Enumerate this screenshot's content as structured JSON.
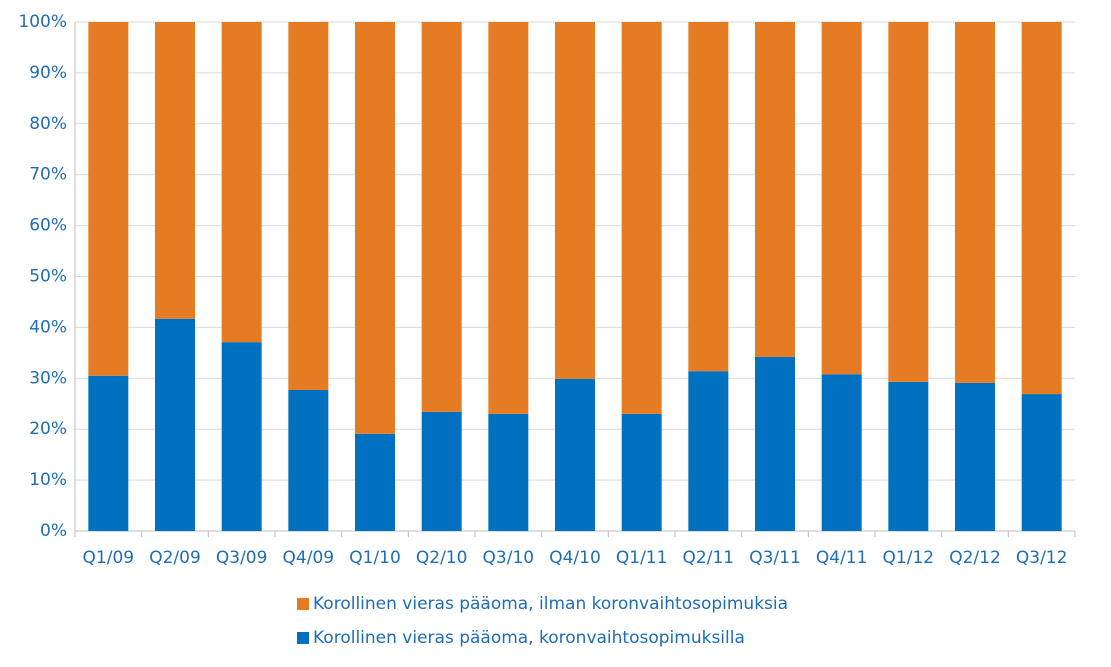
{
  "chart_data": {
    "type": "stacked_bar_percent",
    "categories": [
      "Q1/09",
      "Q2/09",
      "Q3/09",
      "Q4/09",
      "Q1/10",
      "Q2/10",
      "Q3/10",
      "Q4/10",
      "Q1/11",
      "Q2/11",
      "Q3/11",
      "Q4/11",
      "Q1/12",
      "Q2/12",
      "Q3/12"
    ],
    "series": [
      {
        "name": "Korollinen vieras pääoma, koronvaihtosopimuksilla",
        "color": "#0070c0",
        "values": [
          30.5,
          41.7,
          37.1,
          27.7,
          19.1,
          23.4,
          23.0,
          29.9,
          23.0,
          31.4,
          34.2,
          30.8,
          29.3,
          29.1,
          26.9
        ]
      },
      {
        "name": "Korollinen vieras pääoma, ilman koronvaihtosopimuksia",
        "color": "#e57c24",
        "values": [
          69.5,
          58.3,
          62.9,
          72.3,
          80.9,
          76.6,
          77.0,
          70.1,
          77.0,
          68.6,
          65.8,
          69.2,
          70.7,
          70.9,
          73.1
        ]
      }
    ],
    "ylim": [
      0,
      100
    ],
    "yticks": [
      {
        "value": 0,
        "label": "0%"
      },
      {
        "value": 10,
        "label": "10%"
      },
      {
        "value": 20,
        "label": "20%"
      },
      {
        "value": 30,
        "label": "30%"
      },
      {
        "value": 40,
        "label": "40%"
      },
      {
        "value": 50,
        "label": "50%"
      },
      {
        "value": 60,
        "label": "60%"
      },
      {
        "value": 70,
        "label": "70%"
      },
      {
        "value": 80,
        "label": "80%"
      },
      {
        "value": 90,
        "label": "90%"
      },
      {
        "value": 100,
        "label": "100%"
      }
    ],
    "grid": true,
    "legend": "bottom"
  }
}
